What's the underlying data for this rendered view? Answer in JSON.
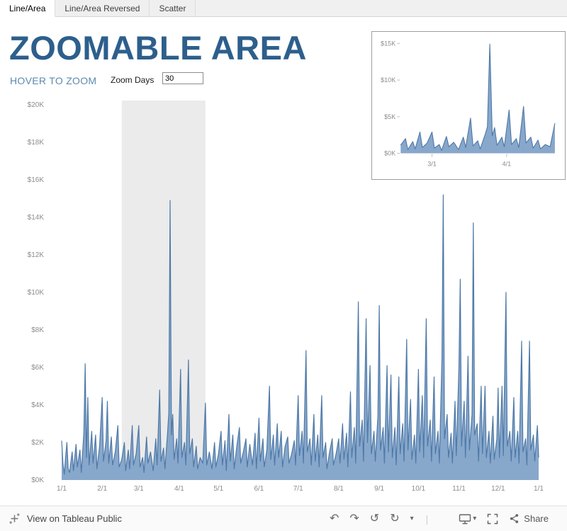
{
  "tabs": {
    "items": [
      {
        "label": "Line/Area",
        "active": true
      },
      {
        "label": "Line/Area Reversed",
        "active": false
      },
      {
        "label": "Scatter",
        "active": false
      }
    ]
  },
  "header": {
    "title": "ZOOMABLE AREA",
    "subtitle": "HOVER TO ZOOM",
    "zoom_days_label": "Zoom Days",
    "zoom_days_value": "30"
  },
  "footer": {
    "view_on_text": "View on Tableau Public",
    "share_label": "Share",
    "icons": {
      "undo": "↶",
      "redo": "↷",
      "reset": "↺",
      "refresh": "↻",
      "caret": "▾",
      "download_caret": "▾"
    }
  },
  "chart_data": {
    "type": "area",
    "title": "ZOOMABLE AREA",
    "y_unit": "USD (thousands)",
    "x_unit": "day of year (0 = Jan 1)",
    "colors": {
      "line": "#4e79a7",
      "fill": "#87a7cb",
      "band": "#ebebeb",
      "axis_text": "#8c8c8c",
      "tick": "#bdbdbd"
    },
    "main": {
      "ylim": [
        0,
        20
      ],
      "y_ticks": [
        {
          "v": 0,
          "label": "$0K"
        },
        {
          "v": 2,
          "label": "$2K"
        },
        {
          "v": 4,
          "label": "$4K"
        },
        {
          "v": 6,
          "label": "$6K"
        },
        {
          "v": 8,
          "label": "$8K"
        },
        {
          "v": 10,
          "label": "$10K"
        },
        {
          "v": 12,
          "label": "$12K"
        },
        {
          "v": 14,
          "label": "$14K"
        },
        {
          "v": 16,
          "label": "$16K"
        },
        {
          "v": 18,
          "label": "$18K"
        },
        {
          "v": 20,
          "label": "$20K"
        }
      ],
      "x_domain": [
        0,
        365
      ],
      "x_ticks": [
        {
          "day": 0,
          "label": "1/1"
        },
        {
          "day": 31,
          "label": "2/1"
        },
        {
          "day": 59,
          "label": "3/1"
        },
        {
          "day": 90,
          "label": "4/1"
        },
        {
          "day": 120,
          "label": "5/1"
        },
        {
          "day": 151,
          "label": "6/1"
        },
        {
          "day": 181,
          "label": "7/1"
        },
        {
          "day": 212,
          "label": "8/1"
        },
        {
          "day": 243,
          "label": "9/1"
        },
        {
          "day": 273,
          "label": "10/1"
        },
        {
          "day": 304,
          "label": "11/1"
        },
        {
          "day": 334,
          "label": "12/1"
        },
        {
          "day": 365,
          "label": "1/1"
        }
      ],
      "highlight_band_days": [
        46,
        110
      ],
      "grid": false,
      "legend": false
    },
    "inset": {
      "ylim": [
        0,
        15
      ],
      "y_ticks": [
        {
          "v": 0,
          "label": "$0K"
        },
        {
          "v": 5,
          "label": "$5K"
        },
        {
          "v": 10,
          "label": "$10K"
        },
        {
          "v": 15,
          "label": "$15K"
        }
      ],
      "x_domain": [
        46,
        110
      ],
      "x_ticks": [
        {
          "day": 59,
          "label": "3/1"
        },
        {
          "day": 90,
          "label": "4/1"
        }
      ],
      "grid": false,
      "legend": false
    },
    "points": [
      [
        0,
        2.1
      ],
      [
        1,
        0.9
      ],
      [
        2,
        0.3
      ],
      [
        3,
        1.2
      ],
      [
        4,
        2.0
      ],
      [
        5,
        0.6
      ],
      [
        6,
        0.4
      ],
      [
        8,
        1.5
      ],
      [
        9,
        0.5
      ],
      [
        11,
        1.9
      ],
      [
        12,
        0.7
      ],
      [
        14,
        1.6
      ],
      [
        15,
        0.4
      ],
      [
        17,
        2.5
      ],
      [
        18,
        6.2
      ],
      [
        19,
        1.2
      ],
      [
        20,
        4.4
      ],
      [
        21,
        0.8
      ],
      [
        23,
        2.6
      ],
      [
        24,
        0.9
      ],
      [
        26,
        2.4
      ],
      [
        27,
        0.6
      ],
      [
        29,
        1.8
      ],
      [
        31,
        4.4
      ],
      [
        32,
        1.0
      ],
      [
        34,
        2.1
      ],
      [
        35,
        4.2
      ],
      [
        36,
        0.9
      ],
      [
        38,
        2.3
      ],
      [
        39,
        0.8
      ],
      [
        41,
        1.5
      ],
      [
        43,
        2.9
      ],
      [
        44,
        0.7
      ],
      [
        46,
        1.1
      ],
      [
        48,
        2.0
      ],
      [
        49,
        0.5
      ],
      [
        51,
        1.6
      ],
      [
        52,
        0.6
      ],
      [
        54,
        2.9
      ],
      [
        55,
        0.8
      ],
      [
        57,
        1.4
      ],
      [
        59,
        2.9
      ],
      [
        60,
        0.7
      ],
      [
        62,
        1.2
      ],
      [
        63,
        0.4
      ],
      [
        65,
        2.3
      ],
      [
        66,
        0.9
      ],
      [
        68,
        1.5
      ],
      [
        70,
        0.5
      ],
      [
        72,
        2.2
      ],
      [
        73,
        0.8
      ],
      [
        75,
        4.8
      ],
      [
        76,
        1.0
      ],
      [
        78,
        1.7
      ],
      [
        79,
        0.6
      ],
      [
        81,
        2.5
      ],
      [
        82,
        3.6
      ],
      [
        83,
        14.9
      ],
      [
        84,
        2.4
      ],
      [
        85,
        3.5
      ],
      [
        86,
        1.1
      ],
      [
        88,
        2.2
      ],
      [
        89,
        0.9
      ],
      [
        91,
        5.9
      ],
      [
        92,
        1.2
      ],
      [
        94,
        2.0
      ],
      [
        95,
        0.8
      ],
      [
        97,
        6.4
      ],
      [
        98,
        1.4
      ],
      [
        100,
        2.2
      ],
      [
        101,
        0.7
      ],
      [
        103,
        1.8
      ],
      [
        104,
        0.6
      ],
      [
        106,
        1.2
      ],
      [
        108,
        0.9
      ],
      [
        110,
        4.1
      ],
      [
        111,
        0.8
      ],
      [
        113,
        1.5
      ],
      [
        115,
        0.6
      ],
      [
        117,
        2.0
      ],
      [
        118,
        0.7
      ],
      [
        120,
        1.4
      ],
      [
        122,
        2.6
      ],
      [
        123,
        0.8
      ],
      [
        125,
        2.1
      ],
      [
        126,
        0.5
      ],
      [
        128,
        3.5
      ],
      [
        129,
        1.0
      ],
      [
        131,
        2.4
      ],
      [
        132,
        0.6
      ],
      [
        134,
        1.8
      ],
      [
        136,
        2.8
      ],
      [
        137,
        0.9
      ],
      [
        139,
        1.5
      ],
      [
        141,
        2.2
      ],
      [
        142,
        0.7
      ],
      [
        144,
        1.9
      ],
      [
        146,
        0.8
      ],
      [
        148,
        2.5
      ],
      [
        149,
        0.6
      ],
      [
        151,
        3.3
      ],
      [
        152,
        1.0
      ],
      [
        154,
        2.2
      ],
      [
        155,
        0.7
      ],
      [
        157,
        1.6
      ],
      [
        159,
        5.0
      ],
      [
        160,
        1.1
      ],
      [
        162,
        2.4
      ],
      [
        163,
        0.8
      ],
      [
        165,
        3.0
      ],
      [
        166,
        1.2
      ],
      [
        168,
        2.6
      ],
      [
        169,
        0.7
      ],
      [
        171,
        1.8
      ],
      [
        173,
        2.3
      ],
      [
        174,
        0.9
      ],
      [
        176,
        1.4
      ],
      [
        178,
        2.1
      ],
      [
        179,
        0.8
      ],
      [
        181,
        4.5
      ],
      [
        182,
        1.3
      ],
      [
        184,
        2.6
      ],
      [
        185,
        0.9
      ],
      [
        187,
        6.9
      ],
      [
        188,
        1.5
      ],
      [
        190,
        2.2
      ],
      [
        191,
        0.8
      ],
      [
        193,
        3.5
      ],
      [
        194,
        1.0
      ],
      [
        196,
        2.4
      ],
      [
        197,
        0.7
      ],
      [
        199,
        4.5
      ],
      [
        200,
        1.2
      ],
      [
        202,
        2.0
      ],
      [
        203,
        0.6
      ],
      [
        205,
        1.5
      ],
      [
        207,
        2.2
      ],
      [
        208,
        0.8
      ],
      [
        210,
        1.4
      ],
      [
        212,
        2.2
      ],
      [
        213,
        0.9
      ],
      [
        215,
        3.0
      ],
      [
        216,
        1.1
      ],
      [
        218,
        2.5
      ],
      [
        219,
        0.7
      ],
      [
        221,
        4.7
      ],
      [
        222,
        1.2
      ],
      [
        224,
        2.8
      ],
      [
        225,
        0.9
      ],
      [
        227,
        9.5
      ],
      [
        228,
        1.8
      ],
      [
        230,
        3.2
      ],
      [
        231,
        1.0
      ],
      [
        233,
        8.6
      ],
      [
        234,
        2.0
      ],
      [
        236,
        6.1
      ],
      [
        237,
        1.4
      ],
      [
        239,
        2.6
      ],
      [
        240,
        1.0
      ],
      [
        242,
        3.4
      ],
      [
        243,
        9.3
      ],
      [
        244,
        1.6
      ],
      [
        246,
        2.8
      ],
      [
        247,
        0.9
      ],
      [
        249,
        6.1
      ],
      [
        250,
        1.5
      ],
      [
        252,
        5.6
      ],
      [
        253,
        1.2
      ],
      [
        255,
        2.8
      ],
      [
        256,
        0.8
      ],
      [
        258,
        5.5
      ],
      [
        259,
        1.4
      ],
      [
        261,
        3.0
      ],
      [
        262,
        1.0
      ],
      [
        264,
        7.5
      ],
      [
        265,
        1.6
      ],
      [
        267,
        4.3
      ],
      [
        268,
        1.1
      ],
      [
        270,
        2.4
      ],
      [
        271,
        0.9
      ],
      [
        273,
        5.9
      ],
      [
        274,
        1.5
      ],
      [
        276,
        4.5
      ],
      [
        277,
        1.2
      ],
      [
        279,
        8.6
      ],
      [
        280,
        1.8
      ],
      [
        282,
        3.2
      ],
      [
        283,
        1.0
      ],
      [
        285,
        5.5
      ],
      [
        286,
        1.4
      ],
      [
        288,
        2.6
      ],
      [
        289,
        0.9
      ],
      [
        291,
        6.5
      ],
      [
        292,
        15.2
      ],
      [
        293,
        2.2
      ],
      [
        295,
        3.5
      ],
      [
        296,
        1.2
      ],
      [
        298,
        2.5
      ],
      [
        299,
        0.9
      ],
      [
        301,
        4.2
      ],
      [
        302,
        1.3
      ],
      [
        304,
        6.0
      ],
      [
        305,
        10.7
      ],
      [
        306,
        1.8
      ],
      [
        308,
        4.2
      ],
      [
        309,
        1.2
      ],
      [
        311,
        6.6
      ],
      [
        312,
        1.6
      ],
      [
        314,
        3.5
      ],
      [
        315,
        13.7
      ],
      [
        316,
        2.4
      ],
      [
        318,
        3.0
      ],
      [
        319,
        1.0
      ],
      [
        321,
        5.0
      ],
      [
        322,
        1.4
      ],
      [
        324,
        5.0
      ],
      [
        325,
        1.2
      ],
      [
        327,
        2.6
      ],
      [
        328,
        0.9
      ],
      [
        330,
        3.4
      ],
      [
        331,
        1.1
      ],
      [
        333,
        2.2
      ],
      [
        334,
        4.9
      ],
      [
        335,
        1.2
      ],
      [
        337,
        5.0
      ],
      [
        338,
        1.3
      ],
      [
        340,
        10.0
      ],
      [
        341,
        1.8
      ],
      [
        343,
        2.6
      ],
      [
        344,
        1.0
      ],
      [
        346,
        4.4
      ],
      [
        347,
        1.2
      ],
      [
        349,
        2.6
      ],
      [
        350,
        0.9
      ],
      [
        352,
        7.4
      ],
      [
        353,
        1.5
      ],
      [
        355,
        2.2
      ],
      [
        356,
        0.8
      ],
      [
        358,
        7.4
      ],
      [
        359,
        1.6
      ],
      [
        361,
        2.4
      ],
      [
        362,
        1.0
      ],
      [
        364,
        2.9
      ],
      [
        365,
        1.2
      ]
    ]
  }
}
